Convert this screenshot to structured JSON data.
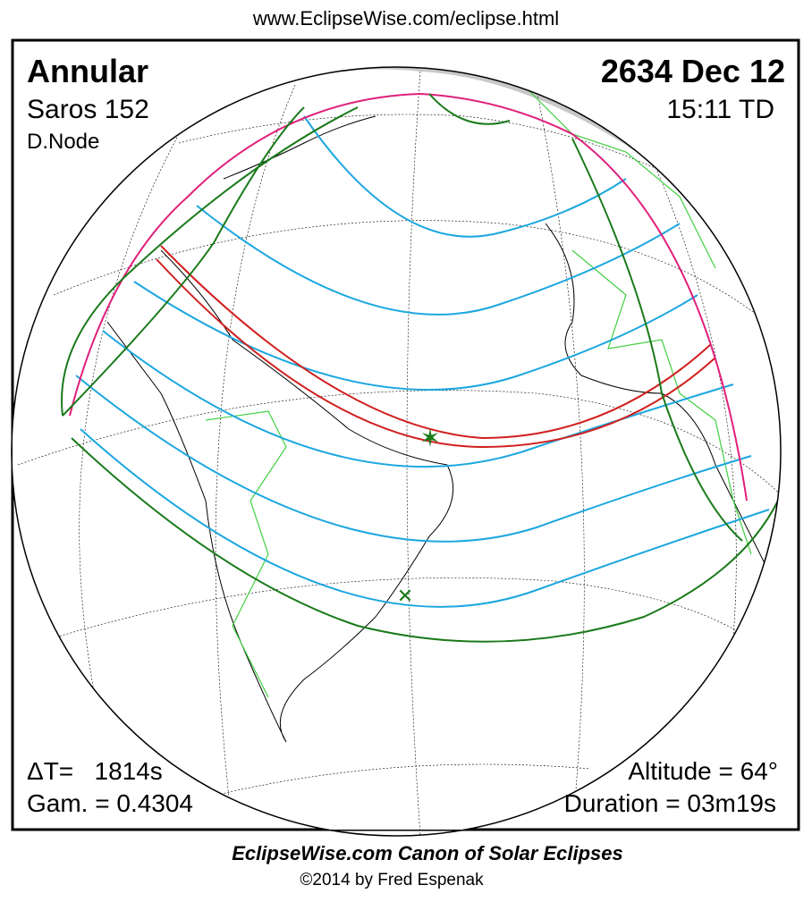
{
  "header": {
    "url": "www.EclipseWise.com/eclipse.html"
  },
  "left": {
    "type": "Annular",
    "saros": "Saros 152",
    "node": "D.Node"
  },
  "right": {
    "date": "2634 Dec 12",
    "time": "15:11 TD"
  },
  "bottom": {
    "delta_t": "ΔT=   1814s",
    "gamma": "Gam. = 0.4304",
    "altitude": "Altitude = 64°",
    "duration": "Duration = 03m19s"
  },
  "footer": {
    "title": "EclipseWise.com Canon of Solar Eclipses",
    "copyright": "©2014 by Fred Espenak"
  }
}
